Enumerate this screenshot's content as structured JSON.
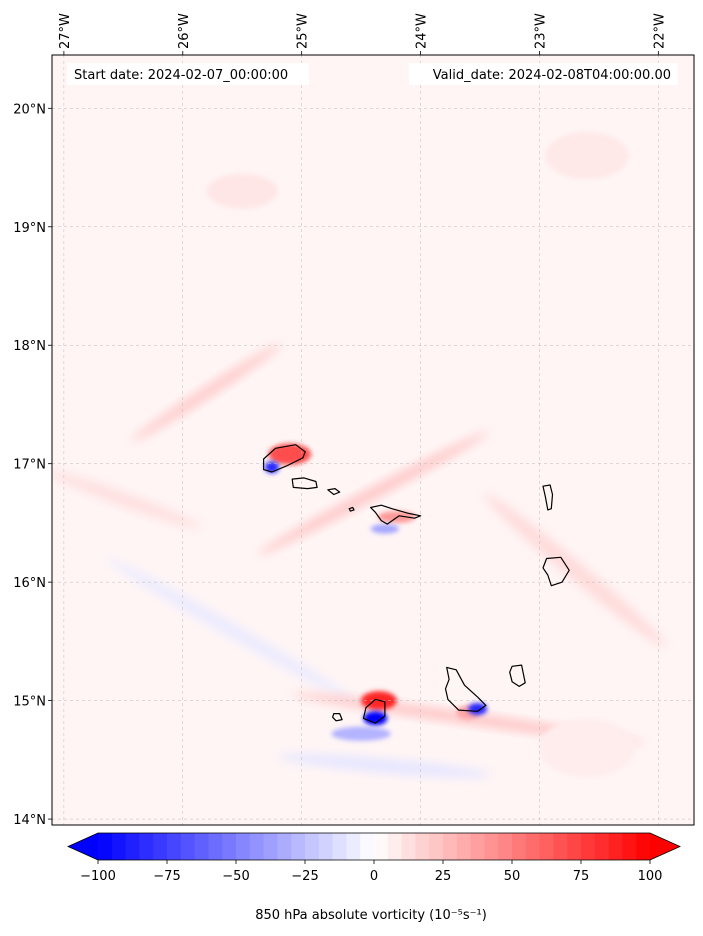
{
  "chart_data": {
    "type": "heatmap",
    "title": "",
    "projection": "PlateCarree",
    "start_date_label": "Start date: 2024-02-07_00:00:00",
    "valid_date_label": "Valid_date: 2024-02-08T04:00:00.00",
    "lon_range": [
      -27.1,
      -21.7
    ],
    "lat_range": [
      13.95,
      20.45
    ],
    "lon_ticks": [
      -27,
      -26,
      -25,
      -24,
      -23,
      -22
    ],
    "lon_tick_labels": [
      "27°W",
      "26°W",
      "25°W",
      "24°W",
      "23°W",
      "22°W"
    ],
    "lat_ticks": [
      14,
      15,
      16,
      17,
      18,
      19,
      20
    ],
    "lat_tick_labels": [
      "14°N",
      "15°N",
      "16°N",
      "17°N",
      "18°N",
      "19°N",
      "20°N"
    ],
    "gridlines": true,
    "colormap": "bwr",
    "colors": {
      "negative": "#0000ff",
      "zero": "#ffffff",
      "positive": "#ff0000",
      "coast": "#000000",
      "grid": "#bbbbbb"
    },
    "colorbar": {
      "label": "850 hPa absolute vorticity (10⁻⁵s⁻¹)",
      "vmin": -100,
      "vmax": 100,
      "extend": "both",
      "ticks": [
        -100,
        -75,
        -50,
        -25,
        0,
        25,
        50,
        75,
        100
      ],
      "tick_labels": [
        "−100",
        "−75",
        "−50",
        "−25",
        "0",
        "25",
        "50",
        "75",
        "100"
      ]
    },
    "background_value": 4,
    "features": [
      {
        "name": "northwest wake streak",
        "kind": "streak",
        "lon": -25.8,
        "lat": 17.6,
        "len_deg": 1.5,
        "wid_deg": 0.1,
        "angle_deg": -33,
        "value": 20
      },
      {
        "name": "western streak",
        "kind": "streak",
        "lon": -26.5,
        "lat": 16.7,
        "len_deg": 1.4,
        "wid_deg": 0.12,
        "angle_deg": 20,
        "value": 12
      },
      {
        "name": "central wake band",
        "kind": "streak",
        "lon": -24.4,
        "lat": 16.75,
        "len_deg": 2.2,
        "wid_deg": 0.1,
        "angle_deg": -28,
        "value": 22
      },
      {
        "name": "eastern diagonal band",
        "kind": "streak",
        "lon": -22.7,
        "lat": 16.1,
        "len_deg": 2.0,
        "wid_deg": 0.15,
        "angle_deg": 40,
        "value": 14
      },
      {
        "name": "southwest negative band",
        "kind": "streak",
        "lon": -25.6,
        "lat": 15.6,
        "len_deg": 2.4,
        "wid_deg": 0.12,
        "angle_deg": 30,
        "value": -8
      },
      {
        "name": "southern wake band",
        "kind": "streak",
        "lon": -23.6,
        "lat": 14.85,
        "len_deg": 3.0,
        "wid_deg": 0.1,
        "angle_deg": 8,
        "value": 22
      },
      {
        "name": "south negative band",
        "kind": "streak",
        "lon": -24.3,
        "lat": 14.45,
        "len_deg": 1.8,
        "wid_deg": 0.12,
        "angle_deg": 5,
        "value": -10
      },
      {
        "name": "positive lobe Santo Antao",
        "kind": "blob",
        "lon": -25.1,
        "lat": 17.08,
        "rx_deg": 0.18,
        "ry_deg": 0.09,
        "value": 70
      },
      {
        "name": "negative lobe Santo Antao",
        "kind": "blob",
        "lon": -25.25,
        "lat": 16.97,
        "rx_deg": 0.06,
        "ry_deg": 0.05,
        "value": -85
      },
      {
        "name": "positive lobe Sao Nicolau",
        "kind": "blob",
        "lon": -24.2,
        "lat": 16.55,
        "rx_deg": 0.16,
        "ry_deg": 0.05,
        "value": 40
      },
      {
        "name": "negative lobe Sao Nicolau",
        "kind": "blob",
        "lon": -24.3,
        "lat": 16.45,
        "rx_deg": 0.12,
        "ry_deg": 0.04,
        "value": -35
      },
      {
        "name": "positive lobe Fogo",
        "kind": "blob",
        "lon": -24.35,
        "lat": 15.0,
        "rx_deg": 0.15,
        "ry_deg": 0.08,
        "value": 85
      },
      {
        "name": "negative lobe Fogo",
        "kind": "blob",
        "lon": -24.38,
        "lat": 14.85,
        "rx_deg": 0.1,
        "ry_deg": 0.06,
        "value": -100
      },
      {
        "name": "positive lobe Santiago",
        "kind": "blob",
        "lon": -23.6,
        "lat": 14.9,
        "rx_deg": 0.1,
        "ry_deg": 0.06,
        "value": 35
      },
      {
        "name": "negative lobe Santiago",
        "kind": "blob",
        "lon": -23.52,
        "lat": 14.93,
        "rx_deg": 0.08,
        "ry_deg": 0.05,
        "value": -85
      },
      {
        "name": "negative lobe south of Fogo",
        "kind": "blob",
        "lon": -24.5,
        "lat": 14.72,
        "rx_deg": 0.25,
        "ry_deg": 0.06,
        "value": -30
      },
      {
        "name": "northern patch",
        "kind": "blob",
        "lon": -25.5,
        "lat": 19.3,
        "rx_deg": 0.3,
        "ry_deg": 0.15,
        "value": 10
      },
      {
        "name": "north east patch",
        "kind": "blob",
        "lon": -22.6,
        "lat": 19.6,
        "rx_deg": 0.35,
        "ry_deg": 0.2,
        "value": 9
      },
      {
        "name": "southeast patch",
        "kind": "blob",
        "lon": -22.6,
        "lat": 14.6,
        "rx_deg": 0.4,
        "ry_deg": 0.25,
        "value": 7
      }
    ],
    "islands": [
      {
        "name": "Santo Antao",
        "coords": [
          [
            -25.32,
            17.04
          ],
          [
            -25.22,
            17.13
          ],
          [
            -25.05,
            17.16
          ],
          [
            -24.97,
            17.1
          ],
          [
            -24.99,
            17.05
          ],
          [
            -25.13,
            16.98
          ],
          [
            -25.25,
            16.93
          ],
          [
            -25.32,
            16.95
          ]
        ]
      },
      {
        "name": "Sao Vicente",
        "coords": [
          [
            -25.08,
            16.87
          ],
          [
            -24.98,
            16.88
          ],
          [
            -24.88,
            16.85
          ],
          [
            -24.87,
            16.8
          ],
          [
            -24.95,
            16.79
          ],
          [
            -25.07,
            16.8
          ]
        ]
      },
      {
        "name": "Santa Luzia",
        "coords": [
          [
            -24.78,
            16.78
          ],
          [
            -24.72,
            16.79
          ],
          [
            -24.68,
            16.76
          ],
          [
            -24.73,
            16.74
          ]
        ]
      },
      {
        "name": "Raso",
        "coords": [
          [
            -24.6,
            16.62
          ],
          [
            -24.57,
            16.63
          ],
          [
            -24.56,
            16.61
          ],
          [
            -24.59,
            16.6
          ]
        ]
      },
      {
        "name": "Sao Nicolau",
        "coords": [
          [
            -24.42,
            16.63
          ],
          [
            -24.33,
            16.65
          ],
          [
            -24.24,
            16.62
          ],
          [
            -24.1,
            16.58
          ],
          [
            -24.0,
            16.56
          ],
          [
            -24.05,
            16.54
          ],
          [
            -24.18,
            16.56
          ],
          [
            -24.28,
            16.49
          ],
          [
            -24.33,
            16.52
          ],
          [
            -24.38,
            16.59
          ]
        ]
      },
      {
        "name": "Sal",
        "coords": [
          [
            -22.97,
            16.81
          ],
          [
            -22.91,
            16.82
          ],
          [
            -22.89,
            16.74
          ],
          [
            -22.9,
            16.62
          ],
          [
            -22.93,
            16.61
          ],
          [
            -22.95,
            16.72
          ]
        ]
      },
      {
        "name": "Boa Vista",
        "coords": [
          [
            -22.94,
            16.2
          ],
          [
            -22.82,
            16.21
          ],
          [
            -22.75,
            16.1
          ],
          [
            -22.81,
            16.0
          ],
          [
            -22.9,
            15.97
          ],
          [
            -22.93,
            16.06
          ],
          [
            -22.97,
            16.12
          ]
        ]
      },
      {
        "name": "Maio",
        "coords": [
          [
            -23.23,
            15.29
          ],
          [
            -23.15,
            15.3
          ],
          [
            -23.12,
            15.15
          ],
          [
            -23.17,
            15.12
          ],
          [
            -23.23,
            15.16
          ],
          [
            -23.25,
            15.24
          ]
        ]
      },
      {
        "name": "Santiago",
        "coords": [
          [
            -23.78,
            15.28
          ],
          [
            -23.7,
            15.26
          ],
          [
            -23.63,
            15.13
          ],
          [
            -23.52,
            15.03
          ],
          [
            -23.45,
            14.96
          ],
          [
            -23.52,
            14.91
          ],
          [
            -23.68,
            14.92
          ],
          [
            -23.77,
            15.01
          ],
          [
            -23.79,
            15.1
          ],
          [
            -23.76,
            15.18
          ]
        ]
      },
      {
        "name": "Fogo",
        "coords": [
          [
            -24.46,
            14.94
          ],
          [
            -24.38,
            15.01
          ],
          [
            -24.3,
            14.99
          ],
          [
            -24.3,
            14.87
          ],
          [
            -24.38,
            14.81
          ],
          [
            -24.48,
            14.85
          ]
        ]
      },
      {
        "name": "Brava",
        "coords": [
          [
            -24.73,
            14.89
          ],
          [
            -24.68,
            14.89
          ],
          [
            -24.66,
            14.84
          ],
          [
            -24.71,
            14.83
          ],
          [
            -24.74,
            14.86
          ]
        ]
      }
    ]
  }
}
